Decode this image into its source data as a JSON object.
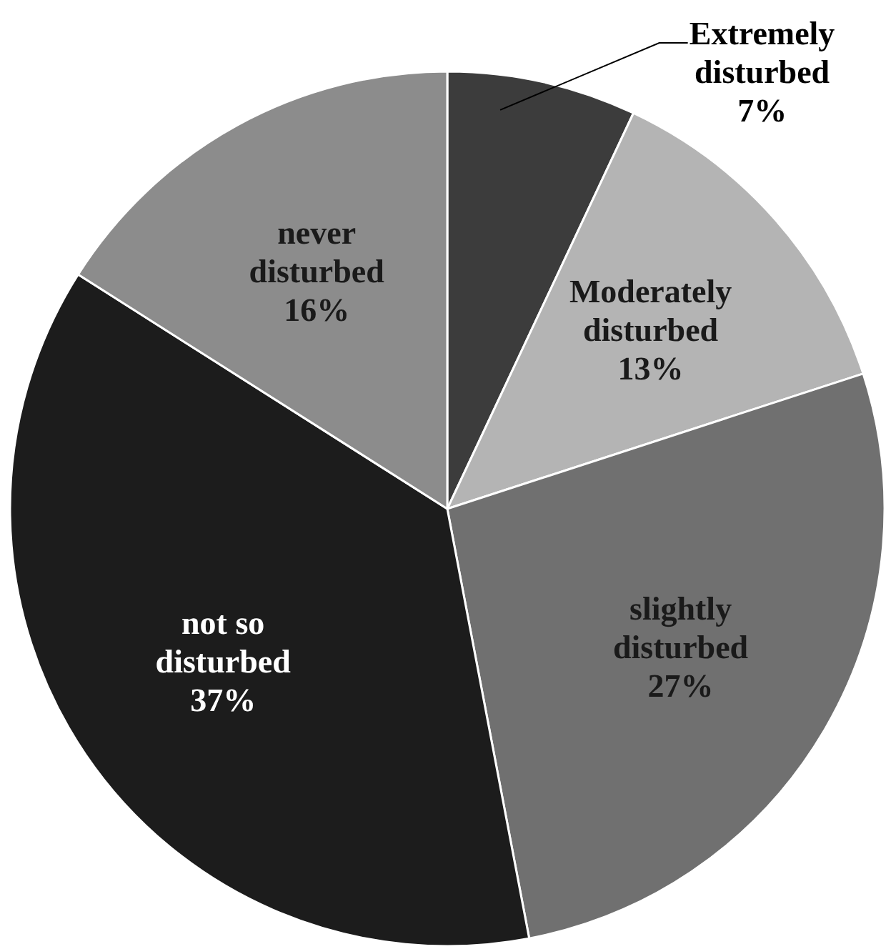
{
  "chart_data": {
    "type": "pie",
    "categories": [
      "Extremely disturbed",
      "Moderately disturbed",
      "slightly disturbed",
      "not so disturbed",
      "never disturbed"
    ],
    "values": [
      7,
      13,
      27,
      37,
      16
    ],
    "colors": [
      "#3c3c3c",
      "#b4b4b4",
      "#707070",
      "#1c1c1c",
      "#8c8c8c"
    ],
    "value_labels": [
      "7%",
      "13%",
      "27%",
      "37%",
      "16%"
    ]
  }
}
